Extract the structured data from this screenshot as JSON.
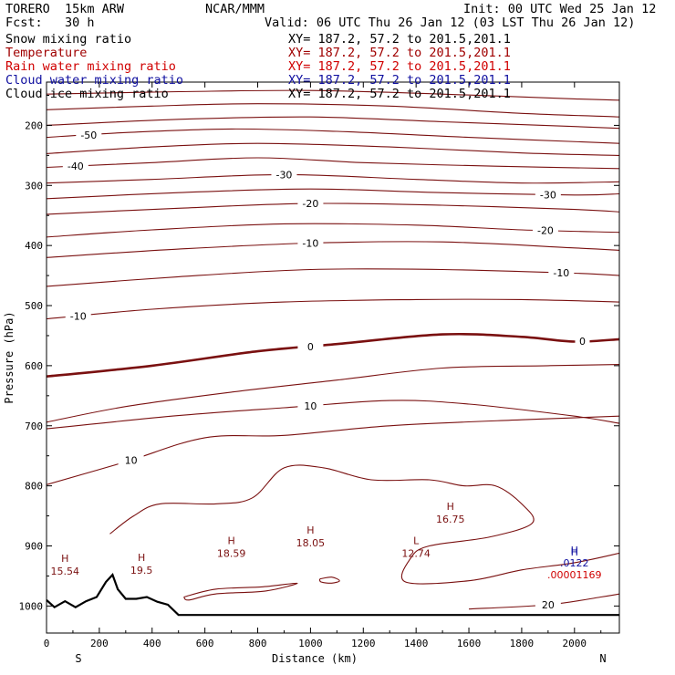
{
  "header": {
    "model": "TORERO  15km ARW",
    "org": "NCAR/MMM",
    "init": "Init: 00 UTC Wed 25 Jan 12",
    "fcst": "Fcst:   30 h",
    "valid": "Valid: 06 UTC Thu 26 Jan 12 (03 LST Thu 26 Jan 12)"
  },
  "fields": [
    {
      "name": "Snow mixing ratio",
      "xy": "XY= 187.2, 57.2 to 201.5,201.1",
      "color": "#000000"
    },
    {
      "name": "Temperature",
      "xy": "XY= 187.2, 57.2 to 201.5,201.1",
      "color": "#a00000"
    },
    {
      "name": "Rain water mixing ratio",
      "xy": "XY= 187.2, 57.2 to 201.5,201.1",
      "color": "#d00000"
    },
    {
      "name": "Cloud water mixing ratio",
      "xy": "XY= 187.2, 57.2 to 201.5,201.1",
      "color": "#1010a0"
    },
    {
      "name": "Cloud ice mixing ratio",
      "xy": "XY= 187.2, 57.2 to 201.5,201.1",
      "color": "#000000"
    }
  ],
  "chart_data": {
    "type": "line",
    "xlabel": "Distance (km)",
    "ylabel": "Pressure (hPa)",
    "xlim": [
      0,
      2170
    ],
    "ylim": [
      1045,
      128
    ],
    "x_ticks": [
      "0",
      "200",
      "400",
      "600",
      "800",
      "1000",
      "1200",
      "1400",
      "1600",
      "1800",
      "2000"
    ],
    "y_ticks": [
      "200",
      "300",
      "400",
      "500",
      "600",
      "700",
      "800",
      "900",
      "1000"
    ],
    "end_labels": {
      "left": "S",
      "right": "N"
    },
    "contour_color": "#7a1010",
    "isotherms": [
      {
        "level": "",
        "points": [
          [
            0,
            148
          ],
          [
            500,
            144
          ],
          [
            1000,
            142
          ],
          [
            1500,
            148
          ],
          [
            2000,
            156
          ],
          [
            2170,
            158
          ]
        ]
      },
      {
        "level": "",
        "points": [
          [
            0,
            174
          ],
          [
            400,
            168
          ],
          [
            800,
            164
          ],
          [
            1300,
            168
          ],
          [
            1800,
            180
          ],
          [
            2170,
            186
          ]
        ]
      },
      {
        "level": "",
        "points": [
          [
            0,
            200
          ],
          [
            500,
            190
          ],
          [
            1000,
            186
          ],
          [
            1500,
            194
          ],
          [
            2000,
            202
          ],
          [
            2170,
            205
          ]
        ]
      },
      {
        "level": "-50",
        "points": [
          [
            0,
            220
          ],
          [
            300,
            212
          ],
          [
            700,
            206
          ],
          [
            1100,
            210
          ],
          [
            1600,
            220
          ],
          [
            2170,
            230
          ]
        ]
      },
      {
        "level": "",
        "points": [
          [
            0,
            247
          ],
          [
            400,
            236
          ],
          [
            800,
            230
          ],
          [
            1300,
            236
          ],
          [
            1800,
            246
          ],
          [
            2170,
            250
          ]
        ]
      },
      {
        "level": "-40",
        "points": [
          [
            0,
            270
          ],
          [
            400,
            262
          ],
          [
            800,
            254
          ],
          [
            1200,
            262
          ],
          [
            1700,
            268
          ],
          [
            2170,
            272
          ]
        ]
      },
      {
        "level": "-30",
        "points": [
          [
            0,
            296
          ],
          [
            400,
            290
          ],
          [
            900,
            282
          ],
          [
            1400,
            290
          ],
          [
            1800,
            296
          ],
          [
            2170,
            294
          ]
        ]
      },
      {
        "level": "-30",
        "points": [
          [
            0,
            322
          ],
          [
            500,
            312
          ],
          [
            1000,
            306
          ],
          [
            1500,
            312
          ],
          [
            2000,
            316
          ],
          [
            2170,
            314
          ]
        ]
      },
      {
        "level": "-20",
        "points": [
          [
            0,
            348
          ],
          [
            500,
            338
          ],
          [
            1000,
            330
          ],
          [
            1500,
            333
          ],
          [
            2000,
            340
          ],
          [
            2170,
            344
          ]
        ]
      },
      {
        "level": "-20",
        "points": [
          [
            0,
            386
          ],
          [
            400,
            374
          ],
          [
            900,
            364
          ],
          [
            1400,
            366
          ],
          [
            1800,
            374
          ],
          [
            2170,
            378
          ]
        ]
      },
      {
        "level": "-10",
        "points": [
          [
            0,
            420
          ],
          [
            500,
            406
          ],
          [
            1000,
            396
          ],
          [
            1500,
            394
          ],
          [
            2000,
            404
          ],
          [
            2170,
            408
          ]
        ]
      },
      {
        "level": "-10",
        "points": [
          [
            0,
            468
          ],
          [
            500,
            452
          ],
          [
            1000,
            440
          ],
          [
            1500,
            440
          ],
          [
            2000,
            446
          ],
          [
            2170,
            450
          ]
        ]
      },
      {
        "level": "-10",
        "points": [
          [
            0,
            522
          ],
          [
            400,
            506
          ],
          [
            900,
            494
          ],
          [
            1400,
            490
          ],
          [
            1800,
            490
          ],
          [
            2170,
            494
          ]
        ]
      },
      {
        "level": "0",
        "bold": true,
        "points": [
          [
            0,
            618
          ],
          [
            400,
            600
          ],
          [
            800,
            576
          ],
          [
            1100,
            564
          ],
          [
            1500,
            548
          ],
          [
            1800,
            552
          ],
          [
            2000,
            560
          ],
          [
            2170,
            556
          ]
        ]
      },
      {
        "level": "",
        "points": [
          [
            0,
            694
          ],
          [
            300,
            668
          ],
          [
            700,
            644
          ],
          [
            1100,
            624
          ],
          [
            1500,
            604
          ],
          [
            1900,
            600
          ],
          [
            2170,
            598
          ]
        ]
      },
      {
        "level": "10",
        "points": [
          [
            0,
            705
          ],
          [
            500,
            683
          ],
          [
            900,
            670
          ],
          [
            1300,
            658
          ],
          [
            1600,
            664
          ],
          [
            2000,
            684
          ],
          [
            2170,
            696
          ]
        ]
      },
      {
        "level": "10",
        "points": [
          [
            0,
            798
          ],
          [
            300,
            760
          ],
          [
            600,
            720
          ],
          [
            900,
            716
          ],
          [
            1300,
            700
          ],
          [
            1800,
            690
          ],
          [
            2170,
            684
          ]
        ]
      },
      {
        "level": "20",
        "points": [
          [
            1600,
            1005
          ],
          [
            1900,
            998
          ],
          [
            2100,
            985
          ],
          [
            2170,
            980
          ]
        ]
      }
    ],
    "warm_region": {
      "points": [
        [
          240,
          880
        ],
        [
          330,
          850
        ],
        [
          430,
          830
        ],
        [
          640,
          830
        ],
        [
          780,
          820
        ],
        [
          900,
          770
        ],
        [
          1050,
          770
        ],
        [
          1230,
          790
        ],
        [
          1450,
          790
        ],
        [
          1580,
          800
        ],
        [
          1700,
          800
        ],
        [
          1800,
          830
        ],
        [
          1840,
          862
        ],
        [
          1680,
          885
        ],
        [
          1450,
          900
        ],
        [
          1380,
          920
        ],
        [
          1360,
          960
        ],
        [
          1600,
          958
        ],
        [
          1800,
          940
        ],
        [
          2000,
          928
        ],
        [
          2170,
          912
        ]
      ]
    },
    "inner_cells": [
      {
        "points": [
          [
            520,
            985
          ],
          [
            640,
            972
          ],
          [
            820,
            968
          ],
          [
            950,
            962
          ],
          [
            830,
            975
          ],
          [
            640,
            980
          ],
          [
            540,
            990
          ],
          [
            520,
            985
          ]
        ]
      },
      {
        "points": [
          [
            1035,
            955
          ],
          [
            1080,
            952
          ],
          [
            1110,
            958
          ],
          [
            1080,
            962
          ],
          [
            1040,
            960
          ],
          [
            1035,
            955
          ]
        ]
      }
    ],
    "terrain": {
      "points": [
        [
          0,
          990
        ],
        [
          30,
          1002
        ],
        [
          70,
          992
        ],
        [
          110,
          1002
        ],
        [
          150,
          992
        ],
        [
          190,
          985
        ],
        [
          225,
          960
        ],
        [
          250,
          948
        ],
        [
          270,
          972
        ],
        [
          300,
          988
        ],
        [
          340,
          988
        ],
        [
          380,
          985
        ],
        [
          420,
          993
        ],
        [
          460,
          998
        ],
        [
          500,
          1015
        ],
        [
          2170,
          1015
        ]
      ]
    },
    "extrema_labels": [
      {
        "sym": "H",
        "value": "15.54",
        "x": 70,
        "p": 942,
        "color": "#7a1010"
      },
      {
        "sym": "H",
        "value": "19.5",
        "x": 360,
        "p": 940,
        "color": "#7a1010"
      },
      {
        "sym": "H",
        "value": "18.59",
        "x": 700,
        "p": 912,
        "color": "#7a1010"
      },
      {
        "sym": "H",
        "value": "18.05",
        "x": 1000,
        "p": 895,
        "color": "#7a1010"
      },
      {
        "sym": "L",
        "value": "12.74",
        "x": 1400,
        "p": 912,
        "color": "#7a1010"
      },
      {
        "sym": "H",
        "value": "16.75",
        "x": 1530,
        "p": 855,
        "color": "#7a1010"
      },
      {
        "sym": "H",
        "value": "",
        "x": 2000,
        "p": 910,
        "color": "#1010a0"
      },
      {
        "sym": "H",
        "value": ".0122",
        "x": 2000,
        "p": 928,
        "color": "#1010a0"
      },
      {
        "sym": "",
        "value": ".00001169",
        "x": 2000,
        "p": 948,
        "color": "#d00000"
      }
    ]
  }
}
